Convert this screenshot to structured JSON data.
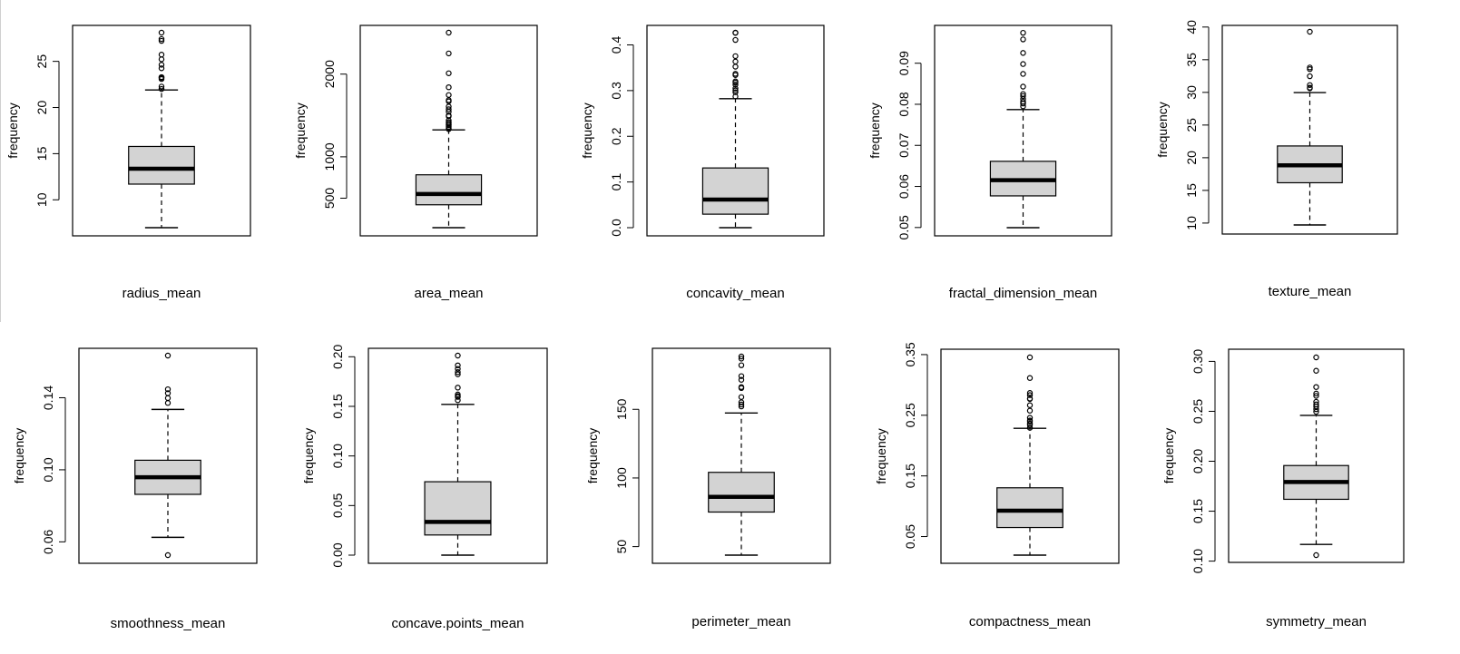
{
  "colors": {
    "box_fill": "#d3d3d3",
    "stroke": "#000000",
    "background": "#ffffff"
  },
  "chart_data": [
    {
      "type": "box",
      "xlabel": "radius_mean",
      "ylabel": "frequency",
      "ticks": [
        10,
        15,
        20,
        25
      ],
      "ylim": [
        6.981,
        28.11
      ],
      "stats": {
        "min": 6.981,
        "q1": 11.7,
        "median": 13.37,
        "q3": 15.78,
        "whisker_high": 21.9
      },
      "outliers": [
        22.01,
        22.27,
        23.09,
        23.21,
        23.27,
        23.29,
        24.25,
        24.63,
        25.22,
        25.73,
        27.22,
        27.42,
        28.11
      ]
    },
    {
      "type": "box",
      "xlabel": "area_mean",
      "ylabel": "frequency",
      "ticks": [
        500,
        1000,
        2000
      ],
      "ylim": [
        143.5,
        2501
      ],
      "stats": {
        "min": 143.5,
        "q1": 420.3,
        "median": 551.1,
        "q3": 782.7,
        "whisker_high": 1326
      },
      "outliers": [
        1335,
        1347,
        1364,
        1384,
        1386,
        1404,
        1419,
        1440,
        1491,
        1500,
        1546,
        1575,
        1608,
        1670,
        1685,
        1747,
        1841,
        2010,
        2250,
        2501
      ]
    },
    {
      "type": "box",
      "xlabel": "concavity_mean",
      "ylabel": "frequency",
      "ticks": [
        0.0,
        0.1,
        0.2,
        0.3,
        0.4
      ],
      "ylim": [
        0,
        0.4268
      ],
      "stats": {
        "min": 0.0,
        "q1": 0.02956,
        "median": 0.06154,
        "q3": 0.1307,
        "whisker_high": 0.2822
      },
      "outliers": [
        0.2871,
        0.2965,
        0.3003,
        0.3046,
        0.313,
        0.3174,
        0.3201,
        0.3339,
        0.3368,
        0.3523,
        0.3635,
        0.3754,
        0.4108,
        0.4264,
        0.4268
      ]
    },
    {
      "type": "box",
      "xlabel": "fractal_dimension_mean",
      "ylabel": "frequency",
      "ticks": [
        0.05,
        0.06,
        0.07,
        0.08,
        0.09
      ],
      "ylim": [
        0.04996,
        0.09744
      ],
      "stats": {
        "min": 0.04996,
        "q1": 0.0577,
        "median": 0.06154,
        "q3": 0.06612,
        "whisker_high": 0.0787
      },
      "outliers": [
        0.0795,
        0.0802,
        0.0806,
        0.0813,
        0.082,
        0.0825,
        0.0843,
        0.0874,
        0.0898,
        0.0925,
        0.0958,
        0.0974
      ]
    },
    {
      "type": "box",
      "xlabel": "texture_mean",
      "ylabel": "frequency",
      "ticks": [
        10,
        15,
        20,
        25,
        30,
        35,
        40
      ],
      "ylim": [
        9.71,
        39.28
      ],
      "stats": {
        "min": 9.71,
        "q1": 16.17,
        "median": 18.84,
        "q3": 21.8,
        "whisker_high": 29.97
      },
      "outliers": [
        30.62,
        30.72,
        31.12,
        32.47,
        33.56,
        33.81,
        39.28
      ]
    },
    {
      "type": "box",
      "xlabel": "smoothness_mean",
      "ylabel": "frequency",
      "ticks": [
        0.06,
        0.1,
        0.14
      ],
      "ylim": [
        0.05263,
        0.1634
      ],
      "stats": {
        "min": 0.06251,
        "q1": 0.08637,
        "median": 0.09587,
        "q3": 0.1053,
        "whisker_high": 0.1335
      },
      "outliers": [
        0.05263,
        0.1371,
        0.1398,
        0.1425,
        0.1447,
        0.1634
      ]
    },
    {
      "type": "box",
      "xlabel": "concave.points_mean",
      "ylabel": "frequency",
      "ticks": [
        0.0,
        0.05,
        0.1,
        0.15,
        0.2
      ],
      "ylim": [
        0,
        0.2012
      ],
      "stats": {
        "min": 0.0,
        "q1": 0.02031,
        "median": 0.0335,
        "q3": 0.074,
        "whisker_high": 0.152
      },
      "outliers": [
        0.1562,
        0.1595,
        0.1604,
        0.162,
        0.1689,
        0.1823,
        0.1845,
        0.1878,
        0.1913,
        0.2012
      ]
    },
    {
      "type": "box",
      "xlabel": "perimeter_mean",
      "ylabel": "frequency",
      "ticks": [
        50,
        100,
        150
      ],
      "ylim": [
        43.79,
        188.5
      ],
      "stats": {
        "min": 43.79,
        "q1": 75.17,
        "median": 86.24,
        "q3": 104.1,
        "whisker_high": 147.3
      },
      "outliers": [
        152.1,
        153.5,
        155.1,
        158.9,
        165.5,
        166.2,
        171.5,
        174.2,
        182.1,
        186.9,
        188.5
      ]
    },
    {
      "type": "box",
      "xlabel": "compactness_mean",
      "ylabel": "frequency",
      "ticks": [
        0.05,
        0.15,
        0.25,
        0.35
      ],
      "ylim": [
        0.01938,
        0.3454
      ],
      "stats": {
        "min": 0.01938,
        "q1": 0.06492,
        "median": 0.09263,
        "q3": 0.1304,
        "whisker_high": 0.2284
      },
      "outliers": [
        0.2293,
        0.2339,
        0.2363,
        0.2396,
        0.2413,
        0.2458,
        0.2576,
        0.2665,
        0.2768,
        0.2776,
        0.2832,
        0.2867,
        0.3114,
        0.3454
      ]
    },
    {
      "type": "box",
      "xlabel": "symmetry_mean",
      "ylabel": "frequency",
      "ticks": [
        0.1,
        0.15,
        0.2,
        0.25,
        0.3
      ],
      "ylim": [
        0.106,
        0.304
      ],
      "stats": {
        "min": 0.1167,
        "q1": 0.1619,
        "median": 0.1792,
        "q3": 0.1957,
        "whisker_high": 0.2459
      },
      "outliers": [
        0.106,
        0.2495,
        0.2521,
        0.2548,
        0.2569,
        0.2595,
        0.2655,
        0.2678,
        0.2743,
        0.2906,
        0.304
      ]
    }
  ]
}
